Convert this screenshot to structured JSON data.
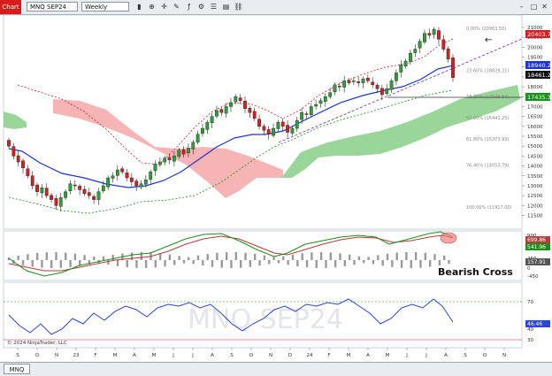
{
  "toolbar": {
    "chart_tab": "Chart",
    "instrument": "MNQ SEP24",
    "interval": "Weekly"
  },
  "watermark": "MNQ SEP24",
  "copyright": "© 2024 NinjaTrader, LLC",
  "annotation": "Bearish Cross",
  "price_tags": {
    "red": "20403.71",
    "blue": "18940.25",
    "last": "18461.25",
    "green": "17435.33"
  },
  "macd_tags": {
    "a": "699.86",
    "b": "541.96",
    "c": "157.91"
  },
  "rsi_tags": {
    "a": "46.46"
  },
  "statusbar": {
    "tab": "MNQ"
  },
  "colors": {
    "bull": "#2e9e3a",
    "bear": "#d42020",
    "cloud_red": "#f4a7a7",
    "cloud_green": "#8fd18f",
    "ma_blue": "#1b35d4",
    "dashed_red": "#d42020",
    "dashed_green": "#1a8f1a",
    "trendline": "#7a3fc4",
    "rsi": "#2a45d8",
    "macd_green": "#1a8f1a",
    "macd_red": "#b83a3a"
  },
  "chart_data": {
    "type": "line",
    "title": "MNQ SEP24",
    "xlabel": "",
    "ylabel": "",
    "x_ticks": [
      "S",
      "O",
      "N",
      "23",
      "F",
      "M",
      "A",
      "M",
      "J",
      "J",
      "A",
      "S",
      "O",
      "N",
      "D",
      "24",
      "F",
      "M",
      "A",
      "M",
      "J",
      "J",
      "A",
      "S",
      "O",
      "N"
    ],
    "y_ticks": [
      21000,
      20500,
      20000,
      19500,
      19000,
      18500,
      18000,
      17500,
      17000,
      16500,
      16000,
      15500,
      15000,
      14500,
      14000,
      13500,
      13000,
      12500,
      12000,
      11500
    ],
    "ylim": [
      11300,
      21400
    ],
    "fib_levels": [
      {
        "label": "0.00% (20963.50)",
        "value": 20963.5
      },
      {
        "label": "23.60% (18829.21)",
        "value": 18829.21
      },
      {
        "label": "38.20% (17508.57)",
        "value": 17508.57
      },
      {
        "label": "50.00% (16441.25)",
        "value": 16441.25
      },
      {
        "label": "61.80% (15373.93)",
        "value": 15373.93
      },
      {
        "label": "76.40% (14053.79)",
        "value": 14053.79
      },
      {
        "label": "100.00% (11917.00)",
        "value": 11917.0
      }
    ],
    "closes": [
      15000,
      14500,
      14200,
      13900,
      13500,
      13000,
      12700,
      12900,
      12500,
      12300,
      12000,
      12400,
      12700,
      13100,
      13000,
      12800,
      12600,
      12500,
      12300,
      12700,
      13000,
      13400,
      13500,
      13800,
      13700,
      13400,
      13200,
      13000,
      13100,
      13300,
      13700,
      14100,
      14200,
      14400,
      14300,
      14500,
      14800,
      14600,
      14900,
      15200,
      15600,
      15900,
      16200,
      16500,
      16800,
      16700,
      17000,
      17200,
      17500,
      17300,
      16900,
      16700,
      16400,
      16000,
      15800,
      15600,
      15900,
      16200,
      16000,
      15700,
      15900,
      16300,
      16700,
      16600,
      17000,
      17100,
      17300,
      17500,
      17700,
      18100,
      18000,
      18300,
      18200,
      18300,
      18200,
      18400,
      18300,
      18100,
      17900,
      17600,
      17900,
      18300,
      18700,
      19100,
      19300,
      19700,
      19900,
      20300,
      20700,
      20600,
      20900,
      20400,
      19900,
      19400,
      18461
    ]
  }
}
